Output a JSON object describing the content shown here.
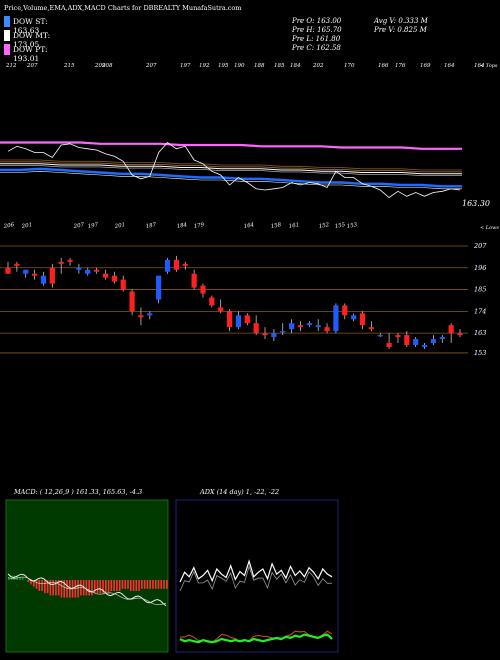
{
  "header": {
    "title": "Price,Volume,EMA,ADX,MACD Charts for DBREALTY MunafaSutra.com",
    "legend": [
      {
        "label": "DOW ST: 163.63",
        "color": "#3b8cff"
      },
      {
        "label": "DOW MT: 173.05",
        "color": "#ffffff"
      },
      {
        "label": "DOW PT: 193.01",
        "color": "#ff66ff"
      }
    ],
    "prev": [
      {
        "label": "Pre O:",
        "value": "163.00"
      },
      {
        "label": "Pre H:",
        "value": "165.70"
      },
      {
        "label": "Pre L:",
        "value": "161.80"
      },
      {
        "label": "Pre C:",
        "value": "162.58"
      }
    ],
    "vol": [
      {
        "label": "Avg V:",
        "value": "0.333 M"
      },
      {
        "label": "Pre V:",
        "value": "0.825 M"
      }
    ]
  },
  "top_tags": [
    "212",
    "207",
    "215",
    "209",
    "208",
    "207",
    "197",
    "192",
    "195",
    "190",
    "188",
    "185",
    "184",
    "202",
    "170",
    "166",
    "176",
    "169",
    "164",
    "164"
  ],
  "top_tag_caption": "< Tops",
  "low_tags": [
    "206",
    "201",
    "207",
    "197",
    "201",
    "187",
    "184",
    "179",
    "164",
    "158",
    "161",
    "152",
    "155",
    "153"
  ],
  "low_tag_caption": "< Lows",
  "last_price_label": "163.30",
  "macd_header": "MACD: ( 12,26,9 ) 161.33, 165.63, -4.3",
  "adx_header": "ADX (14 day) 1, -22, -22",
  "colors": {
    "up": "#1e5cff",
    "down": "#ff2020",
    "hline": "#8a5a1a",
    "ema_fast": "#1e6cff",
    "ema_slow": "#ff66ff",
    "macd_bg": "#003a00"
  },
  "chart_data": [
    {
      "type": "line",
      "title": "EMA panel",
      "series": [
        {
          "name": "DOW ST: 163.63",
          "values": [
            176,
            176,
            177,
            176,
            175,
            174,
            173,
            173,
            172,
            171,
            170,
            170,
            169,
            169,
            168,
            167,
            166,
            166,
            165,
            165,
            164,
            164,
            163,
            163
          ]
        },
        {
          "name": "DOW MT: 173.05",
          "values": [
            181,
            181,
            181,
            180,
            180,
            180,
            179,
            179,
            179,
            178,
            178,
            177,
            177,
            177,
            176,
            176,
            175,
            175,
            174,
            174,
            174,
            173,
            173,
            173
          ]
        },
        {
          "name": "DOW PT: 193.01",
          "values": [
            198,
            198,
            198,
            198,
            198,
            197,
            197,
            197,
            197,
            196,
            196,
            196,
            196,
            195,
            195,
            195,
            195,
            194,
            194,
            194,
            194,
            193,
            193,
            193
          ]
        }
      ]
    },
    {
      "type": "candlestick",
      "title": "Price panel",
      "y_levels": [
        207,
        196,
        185,
        174,
        163,
        153
      ],
      "ylim": [
        148,
        212
      ],
      "candles": [
        {
          "o": 196,
          "h": 199,
          "l": 193,
          "c": 193
        },
        {
          "o": 198,
          "h": 199,
          "l": 194,
          "c": 197
        },
        {
          "o": 193,
          "h": 195,
          "l": 191,
          "c": 195
        },
        {
          "o": 193,
          "h": 195,
          "l": 190,
          "c": 192
        },
        {
          "o": 188,
          "h": 194,
          "l": 187,
          "c": 192
        },
        {
          "o": 196,
          "h": 198,
          "l": 186,
          "c": 188
        },
        {
          "o": 199,
          "h": 201,
          "l": 193,
          "c": 198
        },
        {
          "o": 200,
          "h": 201,
          "l": 197,
          "c": 199
        },
        {
          "o": 195,
          "h": 198,
          "l": 193,
          "c": 196
        },
        {
          "o": 193,
          "h": 196,
          "l": 192,
          "c": 195
        },
        {
          "o": 195,
          "h": 196,
          "l": 193,
          "c": 194
        },
        {
          "o": 193,
          "h": 195,
          "l": 190,
          "c": 191
        },
        {
          "o": 192,
          "h": 194,
          "l": 188,
          "c": 189
        },
        {
          "o": 190,
          "h": 192,
          "l": 184,
          "c": 185
        },
        {
          "o": 184,
          "h": 185,
          "l": 172,
          "c": 174
        },
        {
          "o": 172,
          "h": 176,
          "l": 167,
          "c": 171
        },
        {
          "o": 172,
          "h": 174,
          "l": 170,
          "c": 173
        },
        {
          "o": 180,
          "h": 192,
          "l": 178,
          "c": 192
        },
        {
          "o": 194,
          "h": 201,
          "l": 193,
          "c": 200
        },
        {
          "o": 200,
          "h": 202,
          "l": 194,
          "c": 195
        },
        {
          "o": 198,
          "h": 199,
          "l": 195,
          "c": 197
        },
        {
          "o": 193,
          "h": 195,
          "l": 185,
          "c": 186
        },
        {
          "o": 187,
          "h": 188,
          "l": 181,
          "c": 183
        },
        {
          "o": 181,
          "h": 182,
          "l": 176,
          "c": 177
        },
        {
          "o": 176,
          "h": 180,
          "l": 173,
          "c": 174
        },
        {
          "o": 174,
          "h": 175,
          "l": 164,
          "c": 166
        },
        {
          "o": 166,
          "h": 174,
          "l": 165,
          "c": 172
        },
        {
          "o": 172,
          "h": 173,
          "l": 167,
          "c": 168
        },
        {
          "o": 168,
          "h": 172,
          "l": 162,
          "c": 163
        },
        {
          "o": 163,
          "h": 166,
          "l": 160,
          "c": 162
        },
        {
          "o": 161,
          "h": 165,
          "l": 159,
          "c": 163
        },
        {
          "o": 164,
          "h": 168,
          "l": 162,
          "c": 164
        },
        {
          "o": 165,
          "h": 170,
          "l": 163,
          "c": 168
        },
        {
          "o": 167,
          "h": 169,
          "l": 164,
          "c": 166
        },
        {
          "o": 167,
          "h": 169,
          "l": 166,
          "c": 168
        },
        {
          "o": 166,
          "h": 170,
          "l": 164,
          "c": 167
        },
        {
          "o": 166,
          "h": 168,
          "l": 163,
          "c": 164
        },
        {
          "o": 164,
          "h": 178,
          "l": 163,
          "c": 177
        },
        {
          "o": 177,
          "h": 178,
          "l": 170,
          "c": 172
        },
        {
          "o": 170,
          "h": 173,
          "l": 169,
          "c": 172
        },
        {
          "o": 173,
          "h": 174,
          "l": 165,
          "c": 167
        },
        {
          "o": 166,
          "h": 169,
          "l": 164,
          "c": 165
        },
        {
          "o": 162,
          "h": 163,
          "l": 161,
          "c": 162
        },
        {
          "o": 158,
          "h": 163,
          "l": 155,
          "c": 156
        },
        {
          "o": 162,
          "h": 163,
          "l": 158,
          "c": 161
        },
        {
          "o": 162,
          "h": 164,
          "l": 156,
          "c": 157
        },
        {
          "o": 157,
          "h": 161,
          "l": 156,
          "c": 160
        },
        {
          "o": 156,
          "h": 158,
          "l": 155,
          "c": 157
        },
        {
          "o": 158,
          "h": 162,
          "l": 157,
          "c": 160
        },
        {
          "o": 160,
          "h": 162,
          "l": 158,
          "c": 161
        },
        {
          "o": 167,
          "h": 168,
          "l": 158,
          "c": 163
        },
        {
          "o": 163,
          "h": 165,
          "l": 161,
          "c": 162
        }
      ]
    },
    {
      "type": "bar",
      "title": "MACD panel",
      "series": [
        {
          "name": "MACD",
          "values": [
            1,
            2,
            2,
            2,
            1,
            1,
            0,
            -1,
            -2,
            -3,
            -4,
            -5,
            -5,
            -6,
            -6,
            -7,
            -7,
            -7,
            -7,
            -8,
            -8,
            -8,
            -8,
            -8,
            -8,
            -8,
            -7,
            -7,
            -7,
            -7,
            -7,
            -6,
            -6,
            -6,
            -6,
            -6,
            -6,
            -5,
            -5,
            -5,
            -5,
            -4,
            -4,
            -4,
            -5,
            -5,
            -5,
            -5,
            -4,
            -4,
            -4,
            -4,
            -4,
            -4,
            -4,
            -4,
            -4,
            -4
          ]
        }
      ]
    },
    {
      "type": "line",
      "title": "ADX panel",
      "series": [
        {
          "name": "DI",
          "values": [
            40,
            55,
            48,
            62,
            45,
            50,
            58,
            42,
            60,
            52,
            47,
            65,
            44,
            56,
            50,
            72,
            48,
            55,
            60,
            45,
            68,
            52,
            58,
            46,
            64,
            50,
            57,
            48,
            62,
            55,
            45,
            60,
            52,
            48
          ]
        },
        {
          "name": "ADX",
          "values": [
            10,
            8,
            9,
            8,
            7,
            9,
            8,
            7,
            8,
            10,
            9,
            8,
            9,
            8,
            9,
            8,
            10,
            9,
            8,
            9,
            10,
            11,
            10,
            12,
            11,
            13,
            12,
            14,
            13,
            12,
            11,
            13,
            14,
            10
          ]
        }
      ]
    }
  ]
}
